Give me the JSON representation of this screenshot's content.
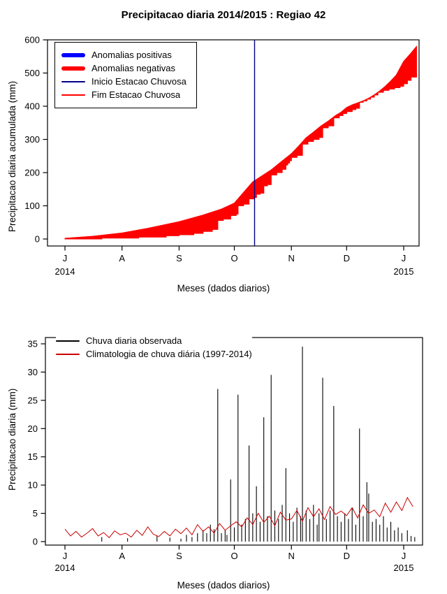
{
  "chart_data": [
    {
      "type": "area",
      "title": "Precipitacao diaria 2014/2015 : Regiao 42",
      "xlabel": "Meses (dados diarios)",
      "ylabel": "Precipitacao diaria acumulada (mm)",
      "ylim": [
        0,
        600
      ],
      "yticks": [
        0,
        100,
        200,
        300,
        400,
        500,
        600
      ],
      "month_ticks": {
        "labels": [
          "J",
          "A",
          "S",
          "O",
          "N",
          "D",
          "J"
        ],
        "days": [
          0,
          31,
          62,
          92,
          123,
          153,
          184
        ]
      },
      "year_labels": [
        {
          "text": "2014",
          "day": 0
        },
        {
          "text": "2015",
          "day": 184
        }
      ],
      "grid": false,
      "legend_position": "top-left",
      "legend": [
        {
          "label": "Anomalias positivas",
          "color": "#0000FF",
          "lw": 6
        },
        {
          "label": "Anomalias negativas",
          "color": "#FF0000",
          "lw": 6
        },
        {
          "label": "Inicio Estacao Chuvosa",
          "color": "#00008B",
          "lw": 2
        },
        {
          "label": "Fim Estacao Chuvosa",
          "color": "#FF0000",
          "lw": 2
        }
      ],
      "inicio_estacao_day": 103,
      "fill_color": "#FF0000",
      "series": [
        {
          "name": "climatologia_acumulada",
          "color": "#FF0000",
          "days": [
            0,
            15,
            31,
            45,
            62,
            75,
            85,
            92,
            97,
            102,
            107,
            112,
            118,
            123,
            127,
            131,
            135,
            139,
            143,
            147,
            150,
            153,
            156,
            159,
            162,
            165,
            168,
            171,
            174,
            177,
            180,
            184,
            188,
            191
          ],
          "values": [
            2,
            8,
            18,
            32,
            52,
            72,
            90,
            108,
            140,
            172,
            190,
            208,
            235,
            257,
            280,
            305,
            322,
            340,
            355,
            372,
            382,
            396,
            404,
            410,
            416,
            424,
            434,
            446,
            460,
            476,
            494,
            535,
            560,
            580
          ]
        },
        {
          "name": "observado_acumulado",
          "color": "#FF0000",
          "days": [
            0,
            20,
            40,
            55,
            62,
            70,
            75,
            80,
            83,
            86,
            90,
            93,
            94,
            97,
            100,
            103,
            104,
            106,
            108,
            110,
            112,
            115,
            118,
            120,
            121,
            122,
            123,
            126,
            129,
            132,
            135,
            138,
            140,
            143,
            146,
            149,
            151,
            153,
            156,
            158,
            160,
            162,
            164,
            166,
            168,
            170,
            173,
            176,
            179,
            182,
            184,
            186,
            188,
            191
          ],
          "values": [
            0,
            3,
            6,
            10,
            13,
            17,
            23,
            29,
            56,
            60,
            71,
            75,
            100,
            105,
            121,
            125,
            135,
            138,
            160,
            164,
            193,
            200,
            210,
            223,
            229,
            236,
            246,
            252,
            286,
            294,
            300,
            306,
            335,
            341,
            365,
            372,
            378,
            384,
            390,
            394,
            412,
            416,
            426,
            436,
            440,
            443,
            448,
            452,
            456,
            460,
            468,
            478,
            488,
            500
          ]
        }
      ]
    },
    {
      "type": "bar",
      "title": "",
      "xlabel": "Meses (dados diarios)",
      "ylabel": "Precipitacao diaria (mm)",
      "ylim": [
        0,
        35
      ],
      "yticks": [
        0,
        5,
        10,
        15,
        20,
        25,
        30,
        35
      ],
      "month_ticks": {
        "labels": [
          "J",
          "A",
          "S",
          "O",
          "N",
          "D",
          "J"
        ],
        "days": [
          0,
          31,
          62,
          92,
          123,
          153,
          184
        ]
      },
      "year_labels": [
        {
          "text": "2014",
          "day": 0
        },
        {
          "text": "2015",
          "day": 184
        }
      ],
      "grid": false,
      "legend_position": "top-left",
      "legend": [
        {
          "label": "Chuva diaria observada",
          "color": "#000000",
          "lw": 2
        },
        {
          "label": "Climatologia de chuva diária (1997-2014)",
          "color": "#CC0000",
          "lw": 2
        }
      ],
      "bars": {
        "name": "Chuva diaria observada",
        "color": "#000000",
        "points": [
          [
            20,
            0.8
          ],
          [
            34,
            0.6
          ],
          [
            50,
            1.0
          ],
          [
            57,
            0.7
          ],
          [
            63,
            0.5
          ],
          [
            66,
            1.2
          ],
          [
            69,
            0.8
          ],
          [
            72,
            1.5
          ],
          [
            75,
            2.0
          ],
          [
            77,
            1.5
          ],
          [
            79,
            3.0
          ],
          [
            81,
            2.2
          ],
          [
            83,
            27
          ],
          [
            85,
            1.5
          ],
          [
            87,
            2.0
          ],
          [
            88,
            1.2
          ],
          [
            90,
            11
          ],
          [
            92,
            2.5
          ],
          [
            94,
            26
          ],
          [
            96,
            3.0
          ],
          [
            98,
            4.0
          ],
          [
            100,
            17
          ],
          [
            102,
            5.0
          ],
          [
            104,
            9.8
          ],
          [
            106,
            3.5
          ],
          [
            108,
            22
          ],
          [
            110,
            4.5
          ],
          [
            112,
            29.5
          ],
          [
            114,
            5.5
          ],
          [
            116,
            4.0
          ],
          [
            118,
            6.5
          ],
          [
            120,
            13
          ],
          [
            122,
            5.0
          ],
          [
            124,
            3.5
          ],
          [
            126,
            6.0
          ],
          [
            128,
            4.5
          ],
          [
            129,
            34.5
          ],
          [
            131,
            5.5
          ],
          [
            133,
            4.0
          ],
          [
            135,
            6.5
          ],
          [
            137,
            3.0
          ],
          [
            138,
            5.0
          ],
          [
            140,
            29
          ],
          [
            142,
            4.0
          ],
          [
            144,
            5.5
          ],
          [
            146,
            24
          ],
          [
            148,
            4.5
          ],
          [
            150,
            3.5
          ],
          [
            152,
            5.0
          ],
          [
            154,
            4.0
          ],
          [
            156,
            6.0
          ],
          [
            158,
            3.0
          ],
          [
            160,
            20
          ],
          [
            162,
            4.5
          ],
          [
            164,
            10.5
          ],
          [
            165,
            8.5
          ],
          [
            167,
            3.5
          ],
          [
            169,
            4.0
          ],
          [
            171,
            3.0
          ],
          [
            173,
            4.5
          ],
          [
            175,
            2.5
          ],
          [
            177,
            3.5
          ],
          [
            179,
            2.0
          ],
          [
            181,
            2.5
          ],
          [
            183,
            1.5
          ],
          [
            186,
            2.0
          ],
          [
            188,
            1.0
          ],
          [
            190,
            0.8
          ]
        ]
      },
      "line": {
        "name": "Climatologia de chuva diária (1997-2014)",
        "color": "#CC0000",
        "step_days": 3,
        "values": [
          2.2,
          1.0,
          1.8,
          0.8,
          1.5,
          2.3,
          1.0,
          1.6,
          0.7,
          1.9,
          1.2,
          1.5,
          0.8,
          2.0,
          1.1,
          2.6,
          1.3,
          0.9,
          1.8,
          1.0,
          2.2,
          1.4,
          2.4,
          1.2,
          3.0,
          1.8,
          2.6,
          1.5,
          3.2,
          2.0,
          2.8,
          3.5,
          2.6,
          4.2,
          3.0,
          5.0,
          3.4,
          4.5,
          2.8,
          5.2,
          3.8,
          4.0,
          5.5,
          3.6,
          6.0,
          4.4,
          5.8,
          3.9,
          6.2,
          4.8,
          5.4,
          4.6,
          6.0,
          4.2,
          6.5,
          5.0,
          5.6,
          4.4,
          6.8,
          5.2,
          7.0,
          5.5,
          7.8,
          6.2
        ]
      }
    }
  ]
}
